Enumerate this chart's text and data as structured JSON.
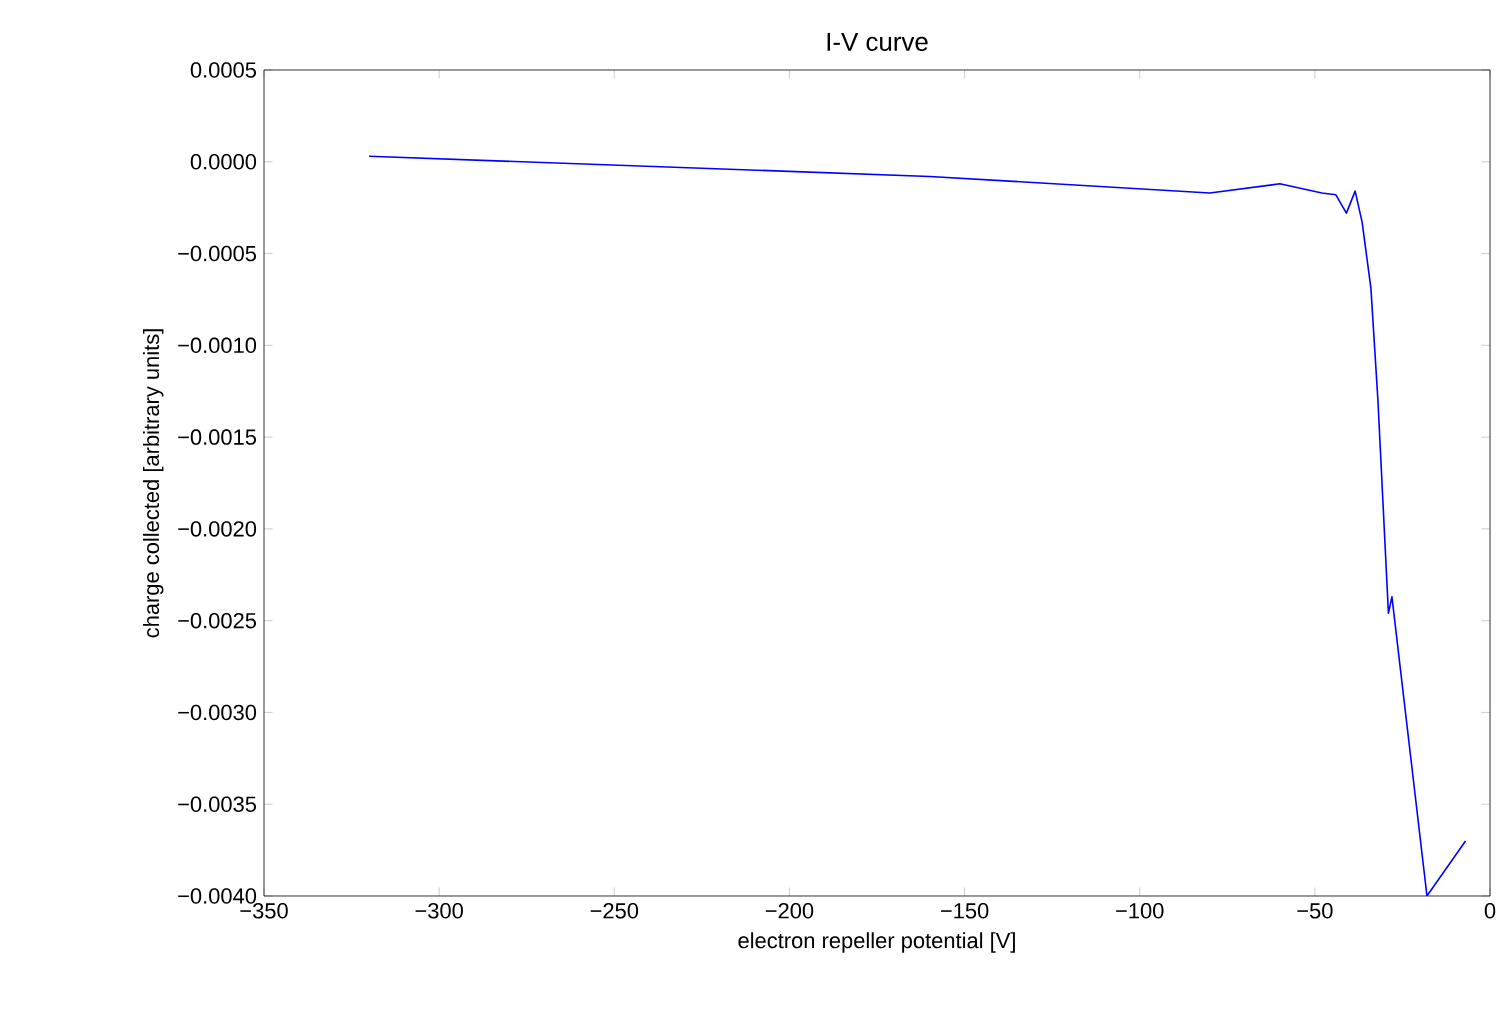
{
  "chart_data": {
    "type": "line",
    "title": "I-V curve",
    "xlabel": "electron repeller potential [V]",
    "ylabel": "charge collected [arbitrary units]",
    "x": [
      -320,
      -160,
      -80,
      -60,
      -48,
      -44,
      -41,
      -38.5,
      -36.5,
      -34,
      -32,
      -29,
      -28,
      -18,
      -7
    ],
    "series": [
      {
        "color": "#0000ff",
        "values": [
          3e-05,
          -8e-05,
          -0.00017,
          -0.00012,
          -0.00017,
          -0.00018,
          -0.00028,
          -0.00016,
          -0.00033,
          -0.00069,
          -0.0013,
          -0.00246,
          -0.00237,
          -0.004,
          -0.0037
        ]
      }
    ],
    "xlim": [
      -350,
      0
    ],
    "ylim": [
      -0.004,
      0.0005
    ],
    "xticks": [
      {
        "value": -350,
        "label": "−350"
      },
      {
        "value": -300,
        "label": "−300"
      },
      {
        "value": -250,
        "label": "−250"
      },
      {
        "value": -200,
        "label": "−200"
      },
      {
        "value": -150,
        "label": "−150"
      },
      {
        "value": -100,
        "label": "−100"
      },
      {
        "value": -50,
        "label": "−50"
      },
      0
    ],
    "yticks": [
      {
        "value": -0.004,
        "label": "−0.0040"
      },
      {
        "value": -0.0035,
        "label": "−0.0035"
      },
      {
        "value": -0.003,
        "label": "−0.0030"
      },
      {
        "value": -0.0025,
        "label": "−0.0025"
      },
      {
        "value": -0.002,
        "label": "−0.0020"
      },
      {
        "value": -0.0015,
        "label": "−0.0015"
      },
      {
        "value": -0.001,
        "label": "−0.0010"
      },
      {
        "value": -0.0005,
        "label": "−0.0005"
      },
      {
        "value": 0,
        "label": "0.0000"
      },
      0.0005
    ],
    "grid": false,
    "marker": "none",
    "line_style": "solid"
  }
}
